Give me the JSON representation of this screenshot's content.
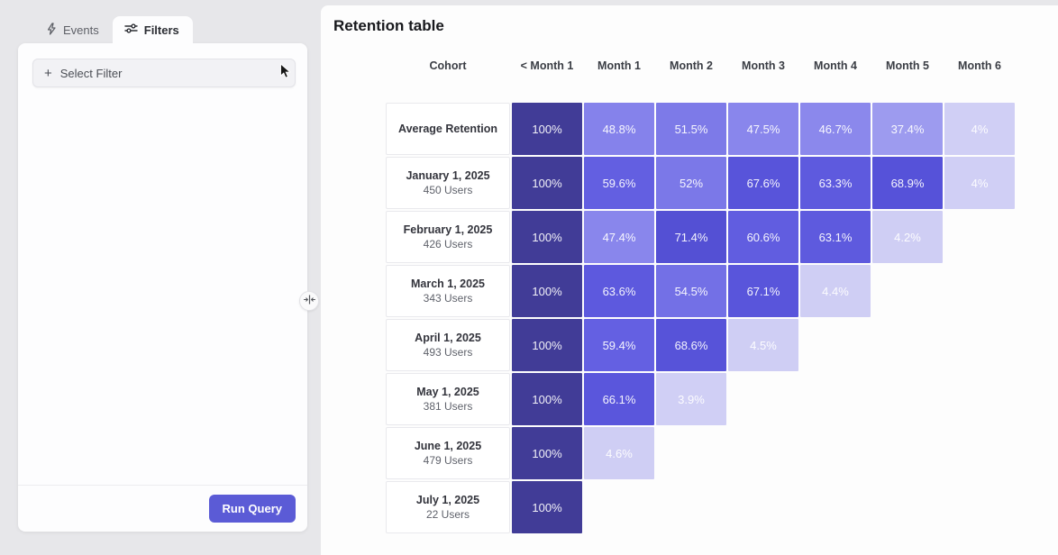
{
  "colors": {
    "page_bg": "#e7e7ea",
    "panel_bg": "#fdfdfd",
    "accent": "#5b5bd6",
    "cell_text": "#ffffff",
    "heat_scale": [
      {
        "value": 0,
        "color": "#d6d5f7"
      },
      {
        "value": 5,
        "color": "#cecdf4"
      },
      {
        "value": 37,
        "color": "#9e9cef"
      },
      {
        "value": 47,
        "color": "#8a87ec"
      },
      {
        "value": 52,
        "color": "#7b78e8"
      },
      {
        "value": 60,
        "color": "#625ee1"
      },
      {
        "value": 69,
        "color": "#5652d9"
      },
      {
        "value": 100,
        "color": "#413c97"
      }
    ]
  },
  "sidebar": {
    "tabs": [
      {
        "label": "Events",
        "icon": "lightning-icon",
        "active": false
      },
      {
        "label": "Filters",
        "icon": "sliders-icon",
        "active": true
      }
    ],
    "select_filter": {
      "plus": "+",
      "label": "Select Filter"
    },
    "run_query_label": "Run Query"
  },
  "main": {
    "title": "Retention table"
  },
  "chart_data": {
    "type": "heatmap",
    "title": "Retention table",
    "unit": "%",
    "columns": [
      "Cohort",
      "< Month 1",
      "Month 1",
      "Month 2",
      "Month 3",
      "Month 4",
      "Month 5",
      "Month 6"
    ],
    "rows": [
      {
        "label": "Average Retention",
        "sublabel": "",
        "values": [
          100,
          48.8,
          51.5,
          47.5,
          46.7,
          37.4,
          4
        ]
      },
      {
        "label": "January 1, 2025",
        "sublabel": "450 Users",
        "values": [
          100,
          59.6,
          52,
          67.6,
          63.3,
          68.9,
          4
        ]
      },
      {
        "label": "February 1, 2025",
        "sublabel": "426 Users",
        "values": [
          100,
          47.4,
          71.4,
          60.6,
          63.1,
          4.2
        ]
      },
      {
        "label": "March 1, 2025",
        "sublabel": "343 Users",
        "values": [
          100,
          63.6,
          54.5,
          67.1,
          4.4
        ]
      },
      {
        "label": "April 1, 2025",
        "sublabel": "493 Users",
        "values": [
          100,
          59.4,
          68.6,
          4.5
        ]
      },
      {
        "label": "May 1, 2025",
        "sublabel": "381 Users",
        "values": [
          100,
          66.1,
          3.9
        ]
      },
      {
        "label": "June 1, 2025",
        "sublabel": "479 Users",
        "values": [
          100,
          4.6
        ]
      },
      {
        "label": "July 1, 2025",
        "sublabel": "22 Users",
        "values": [
          100
        ]
      }
    ]
  }
}
